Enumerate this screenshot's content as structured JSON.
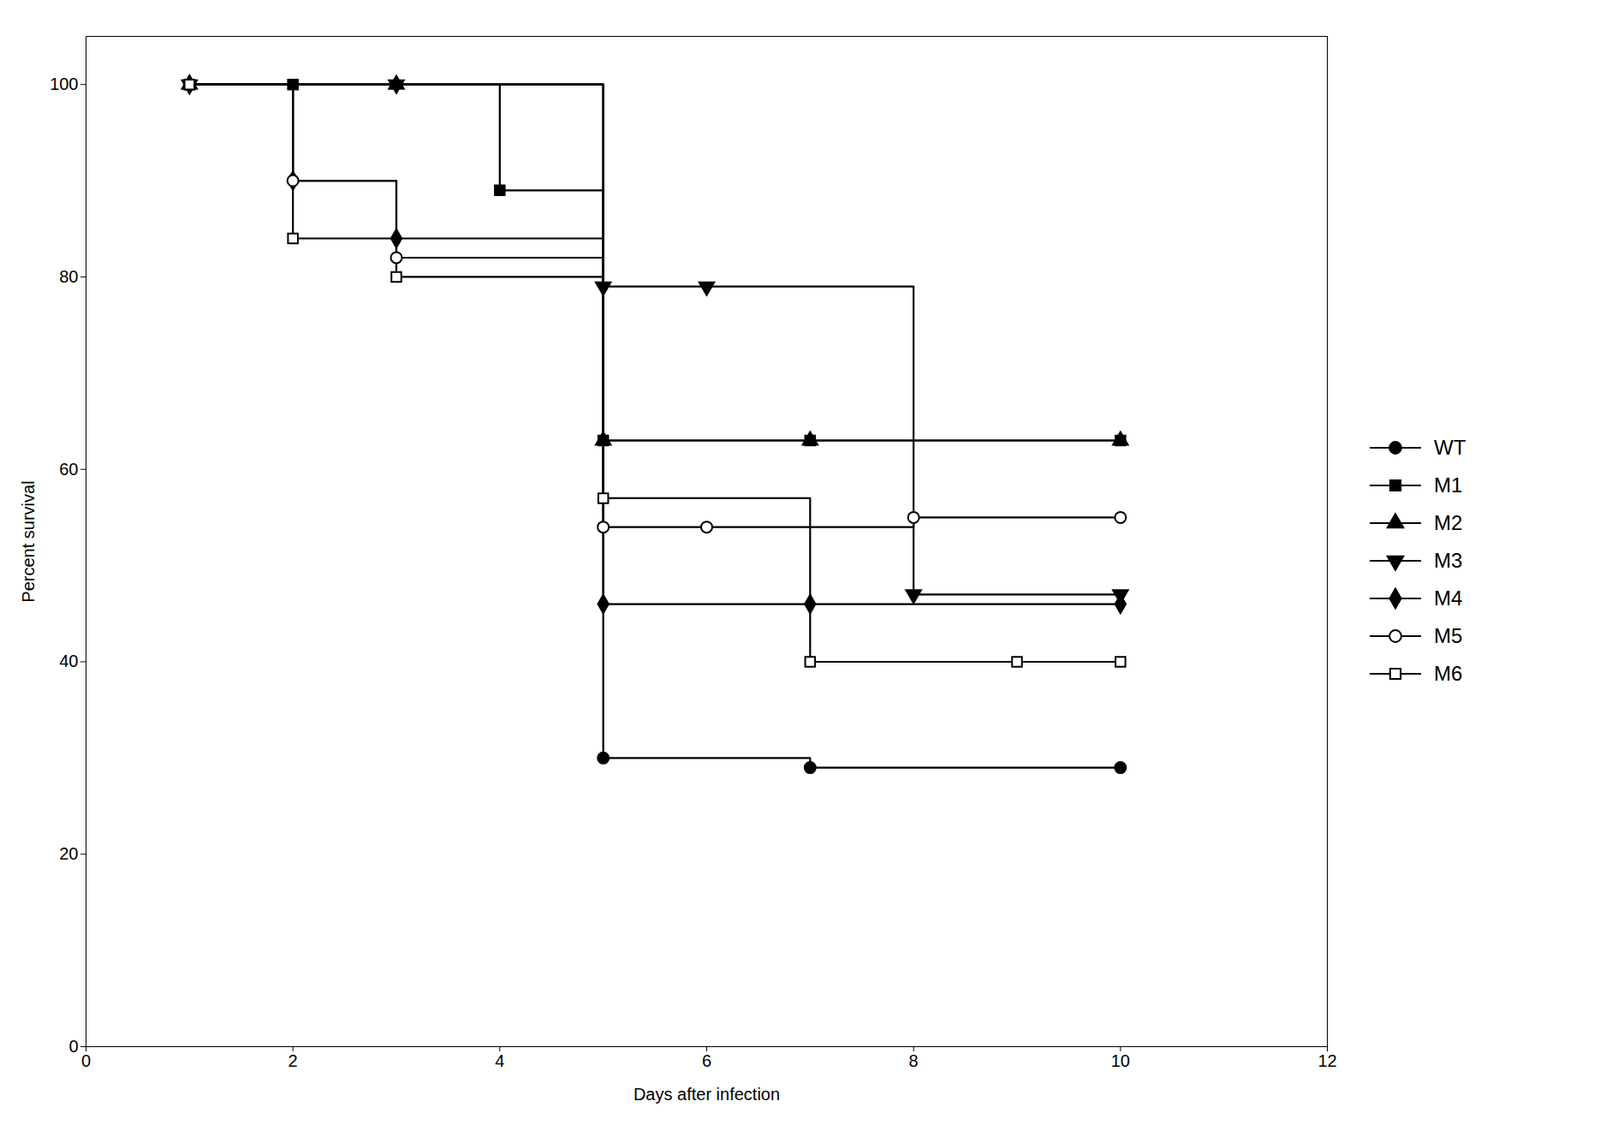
{
  "chart_data": {
    "type": "line",
    "xlabel": "Days after infection",
    "ylabel": "Percent survival",
    "xlim": [
      0,
      12
    ],
    "ylim": [
      0,
      105
    ],
    "xticks": [
      0,
      2,
      4,
      6,
      8,
      10,
      12
    ],
    "yticks": [
      0,
      20,
      40,
      60,
      80,
      100
    ],
    "grid": false,
    "legend": "right",
    "series": [
      {
        "name": "WT",
        "color": "#000000",
        "marker": "circle",
        "x": [
          1,
          5,
          7,
          10
        ],
        "values": [
          100,
          30,
          29,
          29
        ],
        "steps": [
          [
            1,
            100
          ],
          [
            5,
            100
          ],
          [
            5,
            30
          ],
          [
            7,
            30
          ],
          [
            7,
            29
          ],
          [
            10,
            29
          ]
        ]
      },
      {
        "name": "M1",
        "color": "#000000",
        "marker": "square",
        "x": [
          1,
          2,
          4,
          5,
          7,
          10
        ],
        "values": [
          100,
          100,
          89,
          63,
          63,
          63
        ],
        "steps": [
          [
            1,
            100
          ],
          [
            2,
            100
          ],
          [
            4,
            100
          ],
          [
            4,
            89
          ],
          [
            5,
            89
          ],
          [
            5,
            63
          ],
          [
            7,
            63
          ],
          [
            10,
            63
          ]
        ]
      },
      {
        "name": "M2",
        "color": "#000000",
        "marker": "triangle-up",
        "x": [
          1,
          3,
          5,
          7,
          10
        ],
        "values": [
          100,
          100,
          63,
          63,
          63
        ],
        "steps": [
          [
            1,
            100
          ],
          [
            3,
            100
          ],
          [
            5,
            100
          ],
          [
            5,
            63
          ],
          [
            7,
            63
          ],
          [
            10,
            63
          ]
        ]
      },
      {
        "name": "M3",
        "color": "#000000",
        "marker": "triangle-down",
        "x": [
          1,
          3,
          5,
          6,
          8,
          10
        ],
        "values": [
          100,
          100,
          79,
          79,
          47,
          47
        ],
        "steps": [
          [
            1,
            100
          ],
          [
            3,
            100
          ],
          [
            5,
            100
          ],
          [
            5,
            79
          ],
          [
            6,
            79
          ],
          [
            8,
            79
          ],
          [
            8,
            47
          ],
          [
            10,
            47
          ]
        ]
      },
      {
        "name": "M4",
        "color": "#000000",
        "marker": "diamond",
        "x": [
          1,
          2,
          3,
          5,
          7,
          10
        ],
        "values": [
          100,
          90,
          84,
          46,
          46,
          46
        ],
        "steps": [
          [
            1,
            100
          ],
          [
            2,
            100
          ],
          [
            2,
            90
          ],
          [
            3,
            90
          ],
          [
            3,
            84
          ],
          [
            5,
            84
          ],
          [
            5,
            46
          ],
          [
            7,
            46
          ],
          [
            10,
            46
          ]
        ]
      },
      {
        "name": "M5",
        "color": "#000000",
        "marker": "circle-open",
        "x": [
          1,
          2,
          3,
          5,
          6,
          8,
          10
        ],
        "values": [
          100,
          90,
          82,
          54,
          54,
          55,
          55
        ],
        "steps": [
          [
            1,
            100
          ],
          [
            2,
            100
          ],
          [
            2,
            90
          ],
          [
            3,
            90
          ],
          [
            3,
            82
          ],
          [
            5,
            82
          ],
          [
            5,
            54
          ],
          [
            6,
            54
          ],
          [
            8,
            54
          ],
          [
            8,
            55
          ],
          [
            10,
            55
          ]
        ]
      },
      {
        "name": "M6",
        "color": "#000000",
        "marker": "square-open",
        "x": [
          1,
          2,
          3,
          5,
          7,
          9,
          10
        ],
        "values": [
          100,
          84,
          80,
          57,
          40,
          40,
          40
        ],
        "steps": [
          [
            1,
            100
          ],
          [
            2,
            100
          ],
          [
            2,
            84
          ],
          [
            3,
            84
          ],
          [
            3,
            80
          ],
          [
            5,
            80
          ],
          [
            5,
            57
          ],
          [
            7,
            57
          ],
          [
            7,
            40
          ],
          [
            9,
            40
          ],
          [
            10,
            40
          ]
        ]
      }
    ]
  }
}
